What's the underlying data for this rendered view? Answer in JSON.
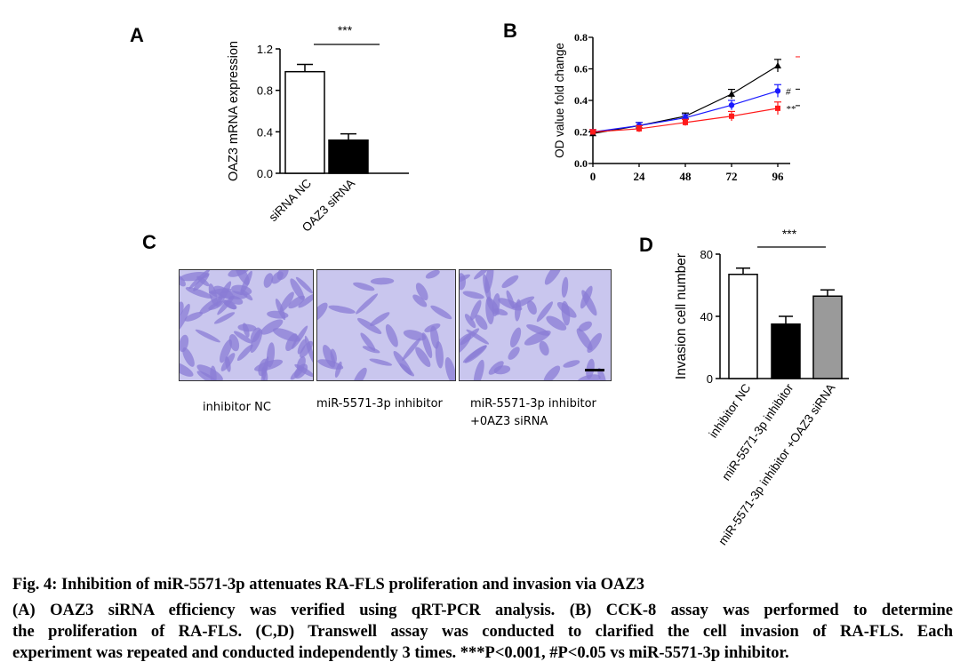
{
  "panels": {
    "a": {
      "letter": "A"
    },
    "b": {
      "letter": "B"
    },
    "c": {
      "letter": "C"
    },
    "d": {
      "letter": "D"
    }
  },
  "chart_data": [
    {
      "id": "A",
      "type": "bar",
      "categories": [
        "siRNA NC",
        "OAZ3 siRNA"
      ],
      "values": [
        0.98,
        0.32
      ],
      "errors": [
        0.07,
        0.06
      ],
      "fills": [
        "#ffffff",
        "#000000"
      ],
      "ylabel": "OAZ3 mRNA expression",
      "ylim": [
        0,
        1.2
      ],
      "yticks": [
        "0.0",
        "0.4",
        "0.8",
        "1.2"
      ],
      "significance": "***"
    },
    {
      "id": "B",
      "type": "line",
      "x": [
        0,
        24,
        48,
        72,
        96
      ],
      "xticks": [
        "0",
        "24",
        "48",
        "72",
        "96"
      ],
      "ylabel": "OD value fold change",
      "ylim": [
        0,
        0.8
      ],
      "yticks": [
        "0.0",
        "0.2",
        "0.4",
        "0.6",
        "0.8"
      ],
      "series": [
        {
          "values": [
            0.19,
            0.24,
            0.3,
            0.44,
            0.62
          ],
          "errors": [
            0.015,
            0.02,
            0.02,
            0.03,
            0.04
          ],
          "color": "#000000",
          "marker": "triangle"
        },
        {
          "values": [
            0.2,
            0.24,
            0.29,
            0.37,
            0.46
          ],
          "errors": [
            0.015,
            0.02,
            0.02,
            0.03,
            0.04
          ],
          "color": "#1a1aff",
          "marker": "circle",
          "annotation": "#"
        },
        {
          "values": [
            0.2,
            0.22,
            0.26,
            0.3,
            0.35
          ],
          "errors": [
            0.015,
            0.02,
            0.02,
            0.03,
            0.04
          ],
          "color": "#ff1a1a",
          "marker": "square",
          "annotation": "**"
        }
      ]
    },
    {
      "id": "D",
      "type": "bar",
      "categories": [
        "inhibitor NC",
        "miR-5571-3p inhibitor",
        "miR-5571-3p inhibitor +OAZ3 siRNA"
      ],
      "values": [
        67,
        35,
        53
      ],
      "errors": [
        4,
        5,
        4
      ],
      "fills": [
        "#ffffff",
        "#000000",
        "#9a9a9a"
      ],
      "ylabel": "Invasion cell number",
      "ylim": [
        0,
        80
      ],
      "yticks": [
        "0",
        "40",
        "80"
      ],
      "significance": "***"
    }
  ],
  "micrographs": [
    {
      "label_lines": [
        "inhibitor NC"
      ]
    },
    {
      "label_lines": [
        "miR-5571-3p inhibitor"
      ]
    },
    {
      "label_lines": [
        "miR-5571-3p inhibitor",
        "+0AZ3 siRNA"
      ]
    }
  ],
  "caption": {
    "title": "Fig. 4: Inhibition of miR-5571-3p attenuates RA-FLS proliferation and invasion via OAZ3",
    "line1": "(A) OAZ3 siRNA efficiency was verified using qRT-PCR analysis. (B) CCK-8 assay was performed to determine",
    "line2": "the proliferation of RA-FLS. (C,D) Transwell assay was conducted to clarified the cell invasion of RA-FLS. Each",
    "line3": "experiment was repeated and conducted independently 3 times. ***P<0.001, #P<0.05 vs miR-5571-3p inhibitor."
  },
  "colors": {
    "micrograph_bg": "#c9c6ee",
    "cell": "#8a7cd6",
    "scale_bar": "#000000"
  }
}
